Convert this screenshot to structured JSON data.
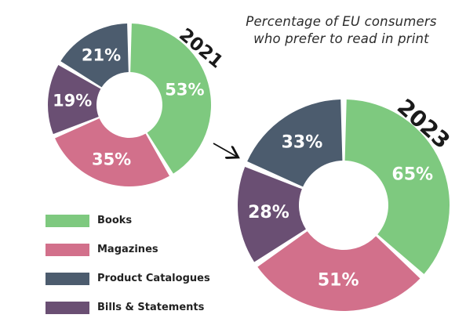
{
  "chart_data": {
    "type": "pie",
    "title": "Percentage of EU consumers who prefer to read in print",
    "title_lines": [
      "Percentage of EU consumers",
      "who prefer to read in print"
    ],
    "categories": [
      "Books",
      "Magazines",
      "Product Catalogues",
      "Bills & Statements"
    ],
    "colors": {
      "Books": "#7ec97f",
      "Magazines": "#d2708b",
      "Product Catalogues": "#4c5c6e",
      "Bills & Statements": "#6a4f73"
    },
    "series": [
      {
        "name": "2021",
        "values": {
          "Books": 53,
          "Magazines": 35,
          "Product Catalogues": 21,
          "Bills & Statements": 19
        },
        "labels": {
          "Books": "53%",
          "Magazines": "35%",
          "Product Catalogues": "21%",
          "Bills & Statements": "19%"
        }
      },
      {
        "name": "2023",
        "values": {
          "Books": 65,
          "Magazines": 51,
          "Product Catalogues": 33,
          "Bills & Statements": 28
        },
        "labels": {
          "Books": "65%",
          "Magazines": "51%",
          "Product Catalogues": "33%",
          "Bills & Statements": "28%"
        }
      }
    ],
    "legend_position": "bottom-left",
    "style": "donut"
  }
}
